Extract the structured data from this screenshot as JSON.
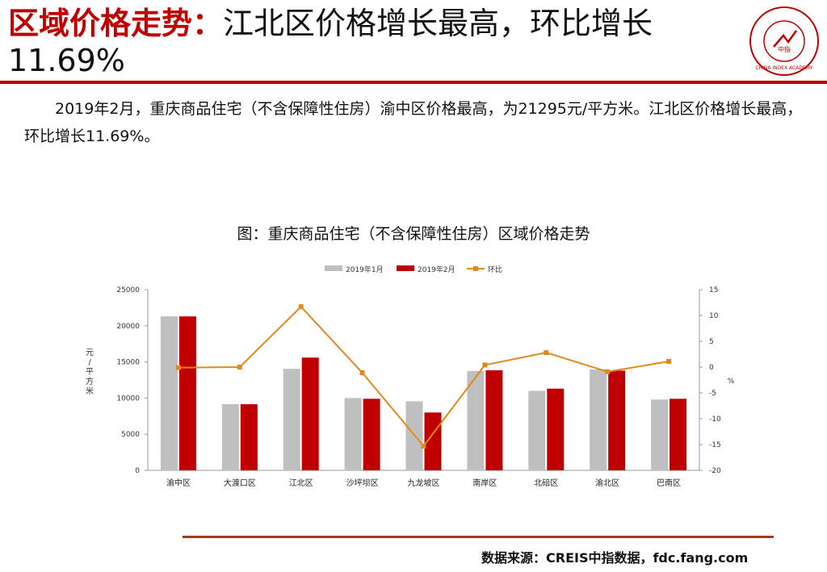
{
  "header": {
    "title_highlight": "区域价格走势：",
    "title_rest": "江北区价格增长最高，环比增长11.69%"
  },
  "logo": {
    "icon": "china-index-academy-seal",
    "text": "CHINA INDEX ACADEMY",
    "center": "中指"
  },
  "body": {
    "paragraph": "2019年2月，重庆商品住宅（不含保障性住房）渝中区价格最高，为21295元/平方米。江北区价格增长最高，环比增长11.69%。"
  },
  "chart_data": {
    "type": "bar",
    "title": "图：重庆商品住宅（不含保障性住房）区域价格走势",
    "categories": [
      "渝中区",
      "大渡口区",
      "江北区",
      "沙坪坝区",
      "九龙坡区",
      "南岸区",
      "北碚区",
      "渝北区",
      "巴南区"
    ],
    "series": [
      {
        "name": "2019年1月",
        "type": "bar",
        "axis": "left",
        "color": "#bfbfbf",
        "values": [
          21300,
          9150,
          14050,
          10000,
          9550,
          13750,
          11000,
          13950,
          9800
        ]
      },
      {
        "name": "2019年2月",
        "type": "bar",
        "axis": "left",
        "color": "#c00000",
        "values": [
          21295,
          9150,
          15600,
          9900,
          8000,
          13850,
          11300,
          13800,
          9900
        ]
      },
      {
        "name": "环比",
        "type": "line",
        "axis": "right",
        "color": "#e08a1e",
        "values": [
          -0.1,
          0.0,
          11.69,
          -1.1,
          -15.3,
          0.4,
          2.8,
          -0.9,
          1.1
        ]
      }
    ],
    "ylabel": "元/平方米",
    "y2label": "%",
    "ylim": [
      0,
      25000
    ],
    "yticks": [
      "0",
      "5000",
      "10000",
      "15000",
      "20000",
      "25000"
    ],
    "y2lim": [
      -20,
      15
    ],
    "y2ticks": [
      "15",
      "10",
      "5",
      "0",
      "-5",
      "-10",
      "-15",
      "-20"
    ],
    "legend_position": "top-center",
    "grid": false
  },
  "footer": {
    "source": "数据来源：CREIS中指数据，fdc.fang.com"
  }
}
